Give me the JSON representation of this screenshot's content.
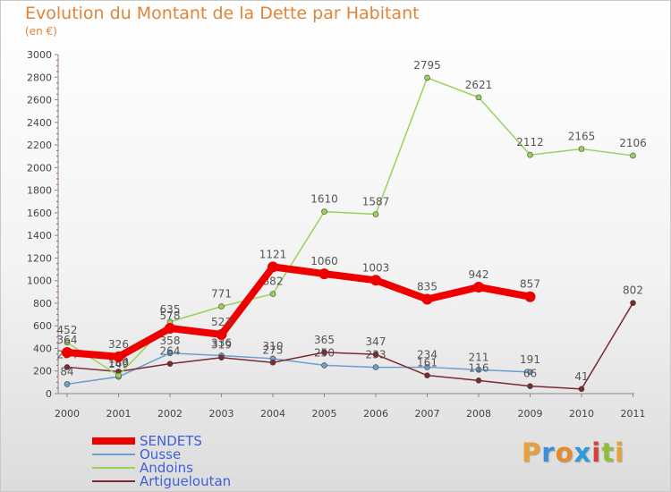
{
  "chart_data": {
    "type": "line",
    "title": "Evolution du Montant de la Dette par Habitant",
    "subtitle": "(en €)",
    "categories": [
      "2000",
      "2001",
      "2002",
      "2003",
      "2004",
      "2005",
      "2006",
      "2007",
      "2008",
      "2009",
      "2010",
      "2011"
    ],
    "ylim": [
      0,
      3000
    ],
    "yticks": [
      0,
      200,
      400,
      600,
      800,
      1000,
      1200,
      1400,
      1600,
      1800,
      2000,
      2200,
      2400,
      2600,
      2800,
      3000
    ],
    "grid": false,
    "legend_position": "bottom-left",
    "series": [
      {
        "name": "Ousse",
        "color": "#6a9fd0",
        "values": [
          84,
          149,
          358,
          336,
          310,
          250,
          233,
          234,
          211,
          191,
          null,
          null
        ],
        "labels": [
          "84",
          "149",
          "358",
          "336",
          "310",
          "250",
          "233",
          "234",
          "211",
          "191",
          "",
          ""
        ]
      },
      {
        "name": "Artigueloutan",
        "color": "#7a2a30",
        "values": [
          234,
          195,
          264,
          319,
          275,
          365,
          347,
          161,
          116,
          66,
          41,
          802
        ],
        "labels": [
          "234",
          "195",
          "264",
          "319",
          "275",
          "365",
          "347",
          "161",
          "116",
          "66",
          "41",
          "802"
        ]
      },
      {
        "name": "Andoins",
        "color": "#99d25a",
        "values": [
          452,
          160,
          635,
          771,
          882,
          1610,
          1587,
          2795,
          2621,
          2112,
          2165,
          2106
        ],
        "labels": [
          "452",
          "160",
          "635",
          "771",
          "882",
          "1610",
          "1587",
          "2795",
          "2621",
          "2112",
          "2165",
          "2106"
        ]
      },
      {
        "name": "SENDETS",
        "color": "#ee0000",
        "values": [
          364,
          326,
          578,
          523,
          1121,
          1060,
          1003,
          835,
          942,
          857,
          null,
          null
        ],
        "labels": [
          "364",
          "326",
          "578",
          "523",
          "1121",
          "1060",
          "1003",
          "835",
          "942",
          "857",
          "",
          ""
        ]
      }
    ]
  },
  "legend": [
    {
      "name": "SENDETS",
      "color": "#ee0000"
    },
    {
      "name": "Ousse",
      "color": "#6a9fd0"
    },
    {
      "name": "Andoins",
      "color": "#99d25a"
    },
    {
      "name": "Artigueloutan",
      "color": "#7a2a30"
    }
  ],
  "logo": {
    "text": "Proxiti",
    "colors": [
      "#e8a13a",
      "#3c8fd6",
      "#e8892e",
      "#2f9ad6",
      "#d8413a",
      "#8dbf3a",
      "#e8a13a"
    ]
  }
}
